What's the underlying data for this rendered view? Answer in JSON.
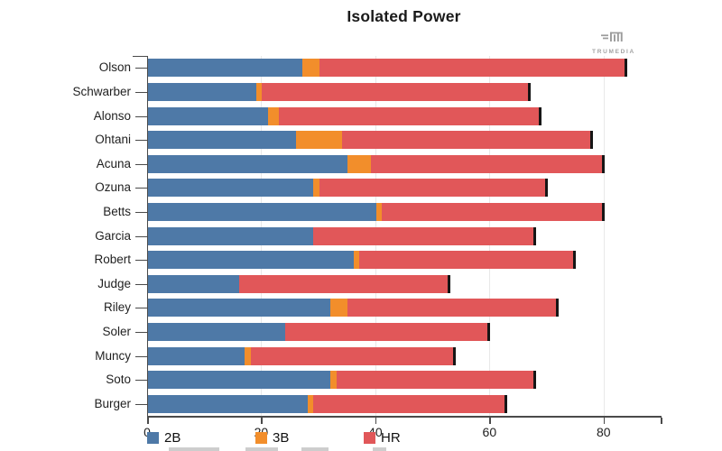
{
  "header": {
    "title": "Isolated Power",
    "brand": {
      "name": "TRUMEDIA",
      "icon": "trumedia-logo",
      "color": "#9b9b9b"
    }
  },
  "chart_data": {
    "type": "bar",
    "orientation": "horizontal",
    "stacked": true,
    "title": "Isolated Power",
    "categories": [
      "Olson",
      "Schwarber",
      "Alonso",
      "Ohtani",
      "Acuna",
      "Ozuna",
      "Betts",
      "Garcia",
      "Robert",
      "Judge",
      "Riley",
      "Soler",
      "Muncy",
      "Soto",
      "Burger"
    ],
    "series": [
      {
        "name": "2B",
        "color": "#4e79a7",
        "values": [
          27,
          19,
          21,
          26,
          35,
          29,
          40,
          29,
          36,
          16,
          32,
          24,
          17,
          32,
          28
        ]
      },
      {
        "name": "3B",
        "color": "#f28e2b",
        "values": [
          3,
          1,
          2,
          8,
          4,
          1,
          1,
          0,
          1,
          0,
          3,
          0,
          1,
          1,
          1
        ]
      },
      {
        "name": "HR",
        "color": "#e15759",
        "values": [
          54,
          47,
          46,
          44,
          41,
          40,
          39,
          39,
          38,
          37,
          37,
          36,
          36,
          35,
          34
        ]
      }
    ],
    "totals": [
      84,
      67,
      69,
      78,
      80,
      70,
      80,
      68,
      75,
      53,
      72,
      60,
      54,
      68,
      63
    ],
    "x_axis": {
      "ticks": [
        0,
        20,
        40,
        60,
        80
      ],
      "max": 90,
      "end_outer_tick": true
    },
    "ylabel": "",
    "xlabel": "",
    "grid": true,
    "legend": [
      "2B",
      "3B",
      "HR"
    ],
    "legend_position": "bottom",
    "bar_end_cap_color": "#161616"
  }
}
